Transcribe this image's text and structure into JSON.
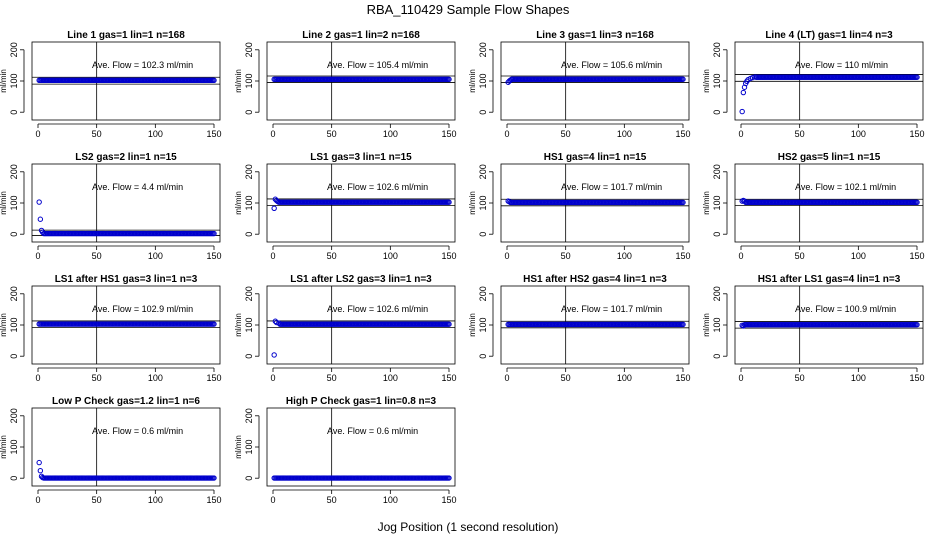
{
  "title": "RBA_110429  Sample Flow Shapes",
  "xlabel": "Jog Position (1 second resolution)",
  "colors": {
    "points": "#0000cc",
    "frame": "#000000",
    "background": "#ffffff"
  },
  "chart_data": [
    {
      "type": "scatter",
      "title": "Line 1 gas=1 lin=1 n=168",
      "ylabel": "ml/min",
      "annotation": "Ave. Flow = 102.3  ml/min",
      "ave_flow": 102.3,
      "xlim": [
        0,
        150
      ],
      "ylim": [
        -25,
        225
      ],
      "xticks": [
        0,
        50,
        100,
        150
      ],
      "yticks": [
        0,
        100,
        200
      ],
      "vline": 50,
      "hlines": [
        90,
        112
      ],
      "start": [],
      "level": 102.3,
      "x_end": 150
    },
    {
      "type": "scatter",
      "title": "Line 2 gas=1 lin=2 n=168",
      "ylabel": "ml/min",
      "annotation": "Ave. Flow = 105.4  ml/min",
      "ave_flow": 105.4,
      "xlim": [
        0,
        150
      ],
      "ylim": [
        -25,
        225
      ],
      "xticks": [
        0,
        50,
        100,
        150
      ],
      "yticks": [
        0,
        100,
        200
      ],
      "vline": 50,
      "hlines": [
        95,
        116
      ],
      "start": [],
      "level": 105.4,
      "x_end": 150
    },
    {
      "type": "scatter",
      "title": "Line 3 gas=1 lin=3 n=168",
      "ylabel": "ml/min",
      "annotation": "Ave. Flow = 105.6  ml/min",
      "ave_flow": 105.6,
      "xlim": [
        0,
        150
      ],
      "ylim": [
        -25,
        225
      ],
      "xticks": [
        0,
        50,
        100,
        150
      ],
      "yticks": [
        0,
        100,
        200
      ],
      "vline": 50,
      "hlines": [
        95,
        116
      ],
      "start": [
        [
          1,
          96
        ],
        [
          2,
          100
        ],
        [
          3,
          103
        ]
      ],
      "level": 105.6,
      "x_end": 150
    },
    {
      "type": "scatter",
      "title": "Line 4 (LT) gas=1 lin=4 n=3",
      "ylabel": "ml/min",
      "annotation": "Ave. Flow = 110  ml/min",
      "ave_flow": 110,
      "xlim": [
        0,
        150
      ],
      "ylim": [
        -25,
        225
      ],
      "xticks": [
        0,
        50,
        100,
        150
      ],
      "yticks": [
        0,
        100,
        200
      ],
      "vline": 50,
      "hlines": [
        99,
        121
      ],
      "start": [
        [
          1,
          2
        ],
        [
          2,
          63
        ],
        [
          3,
          80
        ],
        [
          4,
          92
        ],
        [
          5,
          99
        ],
        [
          6,
          104
        ],
        [
          8,
          108
        ],
        [
          10,
          111
        ],
        [
          12,
          113
        ]
      ],
      "level": 112,
      "x_end": 150
    },
    {
      "type": "scatter",
      "title": "LS2 gas=2 lin=1 n=15",
      "ylabel": "ml/min",
      "annotation": "Ave. Flow = 4.4  ml/min",
      "ave_flow": 4.4,
      "xlim": [
        0,
        150
      ],
      "ylim": [
        -25,
        225
      ],
      "xticks": [
        0,
        50,
        100,
        150
      ],
      "yticks": [
        0,
        100,
        200
      ],
      "vline": 50,
      "hlines": [
        -4,
        13
      ],
      "start": [
        [
          1,
          103
        ],
        [
          2,
          48
        ],
        [
          3,
          12
        ],
        [
          4,
          6
        ]
      ],
      "level": 2,
      "x_end": 150
    },
    {
      "type": "scatter",
      "title": "LS1 gas=3 lin=1 n=15",
      "ylabel": "ml/min",
      "annotation": "Ave. Flow = 102.6  ml/min",
      "ave_flow": 102.6,
      "xlim": [
        0,
        150
      ],
      "ylim": [
        -25,
        225
      ],
      "xticks": [
        0,
        50,
        100,
        150
      ],
      "yticks": [
        0,
        100,
        200
      ],
      "vline": 50,
      "hlines": [
        92,
        113
      ],
      "start": [
        [
          1,
          83
        ],
        [
          2,
          112
        ],
        [
          3,
          108
        ],
        [
          4,
          105
        ]
      ],
      "level": 102.6,
      "x_end": 150
    },
    {
      "type": "scatter",
      "title": "HS1 gas=4 lin=1 n=15",
      "ylabel": "ml/min",
      "annotation": "Ave. Flow = 101.7  ml/min",
      "ave_flow": 101.7,
      "xlim": [
        0,
        150
      ],
      "ylim": [
        -25,
        225
      ],
      "xticks": [
        0,
        50,
        100,
        150
      ],
      "yticks": [
        0,
        100,
        200
      ],
      "vline": 50,
      "hlines": [
        91,
        112
      ],
      "start": [
        [
          1,
          106
        ],
        [
          2,
          104
        ]
      ],
      "level": 101.7,
      "x_end": 150
    },
    {
      "type": "scatter",
      "title": "HS2 gas=5 lin=1 n=15",
      "ylabel": "ml/min",
      "annotation": "Ave. Flow = 102.1  ml/min",
      "ave_flow": 102.1,
      "xlim": [
        0,
        150
      ],
      "ylim": [
        -25,
        225
      ],
      "xticks": [
        0,
        50,
        100,
        150
      ],
      "yticks": [
        0,
        100,
        200
      ],
      "vline": 50,
      "hlines": [
        92,
        112
      ],
      "start": [
        [
          1,
          106
        ],
        [
          2,
          108
        ],
        [
          3,
          106
        ]
      ],
      "level": 102.1,
      "x_end": 150
    },
    {
      "type": "scatter",
      "title": "LS1 after HS1 gas=3 lin=1 n=3",
      "ylabel": "ml/min",
      "annotation": "Ave. Flow = 102.9  ml/min",
      "ave_flow": 102.9,
      "xlim": [
        0,
        150
      ],
      "ylim": [
        -25,
        225
      ],
      "xticks": [
        0,
        50,
        100,
        150
      ],
      "yticks": [
        0,
        100,
        200
      ],
      "vline": 50,
      "hlines": [
        92,
        113
      ],
      "start": [],
      "level": 102.9,
      "x_end": 150
    },
    {
      "type": "scatter",
      "title": "LS1 after LS2 gas=3 lin=1 n=3",
      "ylabel": "ml/min",
      "annotation": "Ave. Flow = 102.6  ml/min",
      "ave_flow": 102.6,
      "xlim": [
        0,
        150
      ],
      "ylim": [
        -25,
        225
      ],
      "xticks": [
        0,
        50,
        100,
        150
      ],
      "yticks": [
        0,
        100,
        200
      ],
      "vline": 50,
      "hlines": [
        92,
        113
      ],
      "start": [
        [
          1,
          4
        ],
        [
          2,
          112
        ],
        [
          3,
          108
        ],
        [
          5,
          106
        ]
      ],
      "level": 102.6,
      "x_end": 150
    },
    {
      "type": "scatter",
      "title": "HS1 after HS2 gas=4 lin=1 n=3",
      "ylabel": "ml/min",
      "annotation": "Ave. Flow = 101.7  ml/min",
      "ave_flow": 101.7,
      "xlim": [
        0,
        150
      ],
      "ylim": [
        -25,
        225
      ],
      "xticks": [
        0,
        50,
        100,
        150
      ],
      "yticks": [
        0,
        100,
        200
      ],
      "vline": 50,
      "hlines": [
        91,
        112
      ],
      "start": [],
      "level": 101.7,
      "x_end": 150
    },
    {
      "type": "scatter",
      "title": "HS1 after LS1 gas=4 lin=1 n=3",
      "ylabel": "ml/min",
      "annotation": "Ave. Flow = 100.9  ml/min",
      "ave_flow": 100.9,
      "xlim": [
        0,
        150
      ],
      "ylim": [
        -25,
        225
      ],
      "xticks": [
        0,
        50,
        100,
        150
      ],
      "yticks": [
        0,
        100,
        200
      ],
      "vline": 50,
      "hlines": [
        90,
        111
      ],
      "start": [
        [
          1,
          99
        ],
        [
          2,
          97
        ]
      ],
      "level": 100.9,
      "x_end": 150
    },
    {
      "type": "scatter",
      "title": "Low P Check gas=1.2 lin=1 n=6",
      "ylabel": "ml/min",
      "annotation": "Ave. Flow = 0.6  ml/min",
      "ave_flow": 0.6,
      "xlim": [
        0,
        150
      ],
      "ylim": [
        -25,
        225
      ],
      "xticks": [
        0,
        50,
        100,
        150
      ],
      "yticks": [
        0,
        100,
        200
      ],
      "vline": 50,
      "hlines": [],
      "start": [
        [
          1,
          50
        ],
        [
          2,
          24
        ],
        [
          3,
          6
        ],
        [
          4,
          2
        ]
      ],
      "level": 0.6,
      "x_end": 150
    },
    {
      "type": "scatter",
      "title": "High P Check gas=1 lin=0.8 n=3",
      "ylabel": "ml/min",
      "annotation": "Ave. Flow = 0.6  ml/min",
      "ave_flow": 0.6,
      "xlim": [
        0,
        150
      ],
      "ylim": [
        -25,
        225
      ],
      "xticks": [
        0,
        50,
        100,
        150
      ],
      "yticks": [
        0,
        100,
        200
      ],
      "vline": 50,
      "hlines": [],
      "start": [],
      "level": 0.6,
      "x_end": 150
    }
  ]
}
